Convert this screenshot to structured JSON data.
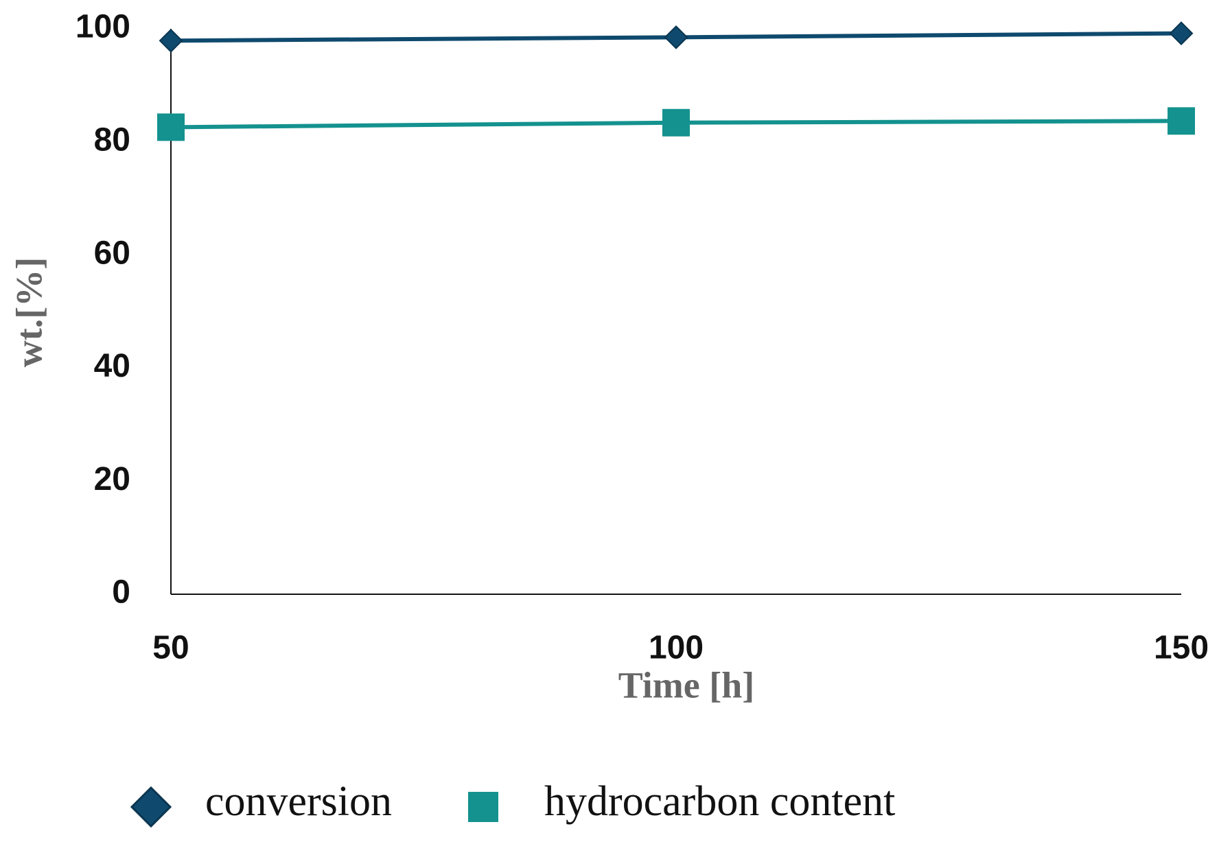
{
  "chart_data": {
    "type": "line",
    "x": [
      50,
      100,
      150
    ],
    "xlabel": "Time [h]",
    "ylabel": "wt.[%]",
    "xlim": [
      50,
      150
    ],
    "xticks": [
      50,
      100,
      150
    ],
    "ylim": [
      0,
      100
    ],
    "yticks": [
      0,
      20,
      40,
      60,
      80,
      100
    ],
    "grid": false,
    "legend": "bottom",
    "series": [
      {
        "name": "conversion",
        "color": "#0f4a6e",
        "marker": "diamond",
        "values": [
          97.9,
          98.5,
          99.2
        ]
      },
      {
        "name": "hydrocarbon content",
        "color": "#14928f",
        "marker": "square",
        "values": [
          82.6,
          83.4,
          83.7
        ]
      }
    ]
  }
}
